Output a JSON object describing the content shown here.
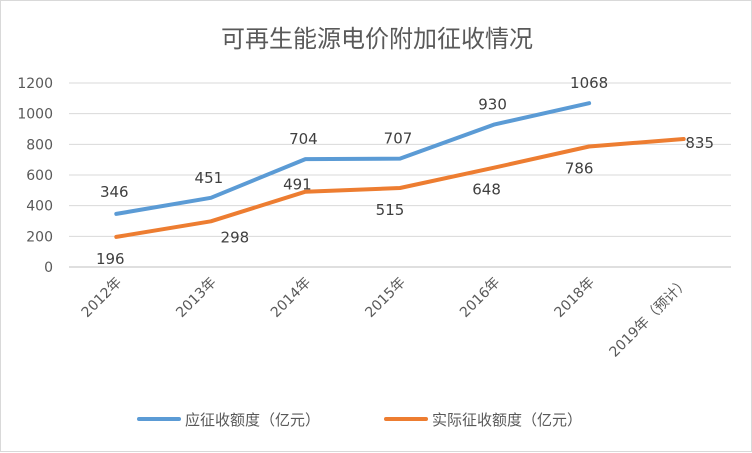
{
  "chart_data": {
    "type": "line",
    "title": "可再生能源电价附加征收情况",
    "categories": [
      "2012年",
      "2013年",
      "2014年",
      "2015年",
      "2016年",
      "2018年",
      "2019年（预计）"
    ],
    "series": [
      {
        "name": "应征收额度（亿元）",
        "values": [
          346,
          451,
          704,
          707,
          930,
          1068,
          null
        ],
        "color": "#5b9bd5"
      },
      {
        "name": "实际征收额度（亿元）",
        "values": [
          196,
          298,
          491,
          515,
          648,
          786,
          835
        ],
        "color": "#ed7d31"
      }
    ],
    "yticks": [
      0,
      200,
      400,
      600,
      800,
      1000,
      1200
    ],
    "ylim": [
      0,
      1200
    ],
    "grid": true,
    "legend": "bottom"
  }
}
